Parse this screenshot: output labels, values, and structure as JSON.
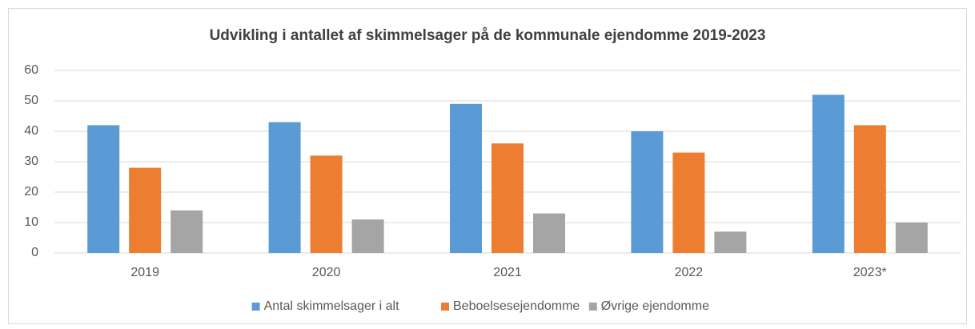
{
  "chart_data": {
    "type": "bar",
    "title": "Udvikling  i antallet af skimmelsager på de kommunale ejendomme 2019-2023",
    "categories": [
      "2019",
      "2020",
      "2021",
      "2022",
      "2023*"
    ],
    "series": [
      {
        "name": "Antal skimmelsager i alt",
        "color": "#5b9bd5",
        "values": [
          42,
          43,
          49,
          40,
          52
        ]
      },
      {
        "name": "Beboelsesejendomme",
        "color": "#ed7d31",
        "values": [
          28,
          32,
          36,
          33,
          42
        ]
      },
      {
        "name": "Øvrige ejendomme",
        "color": "#a5a5a5",
        "values": [
          14,
          11,
          13,
          7,
          10
        ]
      }
    ],
    "ylim": [
      0,
      60
    ],
    "yticks": [
      0,
      10,
      20,
      30,
      40,
      50,
      60
    ],
    "grid": true,
    "legend": "bottom"
  }
}
